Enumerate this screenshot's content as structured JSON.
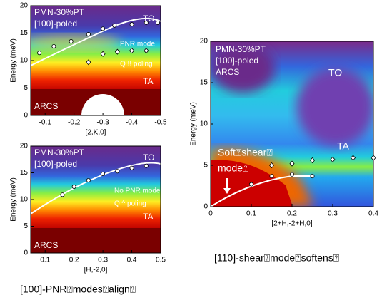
{
  "chart_data": [
    {
      "type": "scatter",
      "xlabel": "[2,K,0]",
      "ylabel": "Energy (meV)",
      "xlim": [
        -0.05,
        -0.5
      ],
      "ylim": [
        0,
        20
      ],
      "xticks": [
        -0.1,
        -0.2,
        -0.3,
        -0.4,
        -0.5
      ],
      "yticks": [
        0,
        5,
        10,
        15,
        20
      ],
      "annotations": [
        "PMN-30%PT",
        "[100]-poled",
        "TO",
        "PNR mode",
        "Q !! poling",
        "TA",
        "ARCS"
      ],
      "series": [
        {
          "marker": "circle",
          "color": "#ffffff",
          "x": [
            -0.08,
            -0.13,
            -0.19,
            -0.25,
            -0.3,
            -0.34,
            -0.4,
            -0.45,
            -0.49
          ],
          "values": [
            11.4,
            12.6,
            13.5,
            14.8,
            15.8,
            16.4,
            16.6,
            16.9,
            16.9
          ]
        },
        {
          "marker": "diamond",
          "color": "#ffffff",
          "x": [
            -0.25,
            -0.3,
            -0.35,
            -0.4,
            -0.45
          ],
          "values": [
            9.7,
            11.2,
            11.6,
            11.8,
            11.8
          ]
        }
      ]
    },
    {
      "type": "scatter",
      "xlabel": "[H,-2,0]",
      "ylabel": "Energy (meV)",
      "xlim": [
        0.05,
        0.5
      ],
      "ylim": [
        0,
        20
      ],
      "xticks": [
        0.1,
        0.2,
        0.3,
        0.4,
        0.5
      ],
      "yticks": [
        0,
        5,
        10,
        15,
        20
      ],
      "annotations": [
        "PMN-30%PT",
        "[100]-poled",
        "TO",
        "No PNR mode",
        "Q ^ poling",
        "TA",
        "ARCS"
      ],
      "series": [
        {
          "marker": "circle",
          "color": "#ffffff",
          "x": [
            0.16,
            0.2,
            0.25,
            0.3,
            0.35,
            0.4,
            0.45
          ],
          "values": [
            10.9,
            12.4,
            13.6,
            14.8,
            15.3,
            15.9,
            16.3
          ]
        }
      ]
    },
    {
      "type": "scatter",
      "xlabel": "[2+H,-2+H,0]",
      "ylabel": "Energy (meV)",
      "xlim": [
        0,
        0.4
      ],
      "ylim": [
        0,
        20
      ],
      "xticks": [
        0,
        0.1,
        0.2,
        0.3,
        0.4
      ],
      "yticks": [
        0,
        5,
        10,
        15,
        20
      ],
      "annotations": [
        "PMN-30%PT",
        "[100]-poled",
        "ARCS",
        "TO",
        "TA",
        "Soft⍰shear⍰",
        "mode⍰"
      ],
      "series": [
        {
          "marker": "circle",
          "color": "#ffffff",
          "x": [
            0.1,
            0.15,
            0.2,
            0.25
          ],
          "values": [
            2.7,
            3.7,
            3.9,
            3.7
          ]
        },
        {
          "marker": "diamond",
          "color": "#ffffff",
          "x": [
            0.15,
            0.2,
            0.25,
            0.3,
            0.35,
            0.4
          ],
          "values": [
            5.0,
            5.2,
            5.6,
            5.7,
            5.9,
            5.9
          ]
        }
      ]
    }
  ],
  "captions": [
    "[110]-shear⍰mode⍰softens⍰",
    "[100]-PNR⍰modes⍰align⍰"
  ]
}
